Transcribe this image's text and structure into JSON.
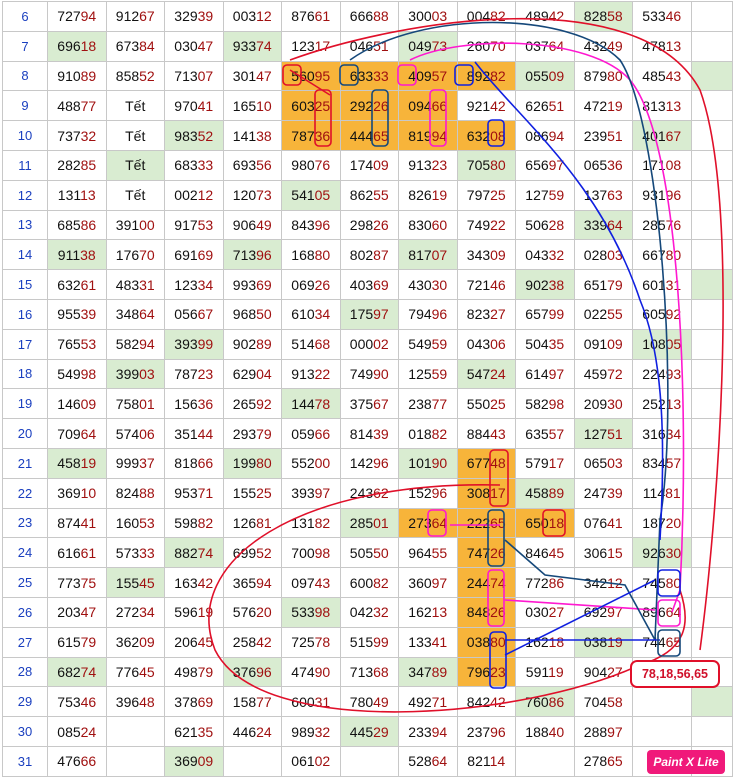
{
  "colors": {
    "green_highlight": "#d9ecd1",
    "orange_highlight": "#f7b43a",
    "red": "#e0102a",
    "pink": "#ff18d0",
    "blue": "#1020e0",
    "navy": "#15487a"
  },
  "rows": [
    {
      "day": "6",
      "cells": [
        {
          "v": "72794"
        },
        {
          "v": "91267"
        },
        {
          "v": "32939"
        },
        {
          "v": "00312"
        },
        {
          "v": "87661"
        },
        {
          "v": "66688"
        },
        {
          "v": "30003"
        },
        {
          "v": "00482"
        },
        {
          "v": "48942"
        },
        {
          "v": "82858",
          "hl": "g"
        },
        {
          "v": "53346"
        },
        {
          "v": "",
          "hl": ""
        }
      ]
    },
    {
      "day": "7",
      "cells": [
        {
          "v": "69618",
          "hl": "g"
        },
        {
          "v": "67384"
        },
        {
          "v": "03047"
        },
        {
          "v": "93374",
          "hl": "g"
        },
        {
          "v": "12317"
        },
        {
          "v": "04651"
        },
        {
          "v": "04973",
          "hl": "g"
        },
        {
          "v": "26070"
        },
        {
          "v": "03764"
        },
        {
          "v": "43249"
        },
        {
          "v": "47813"
        },
        {
          "v": ""
        }
      ]
    },
    {
      "day": "8",
      "cells": [
        {
          "v": "91089"
        },
        {
          "v": "85852"
        },
        {
          "v": "71307"
        },
        {
          "v": "30147"
        },
        {
          "v": "56095",
          "hl": "o"
        },
        {
          "v": "63333",
          "hl": "o"
        },
        {
          "v": "40957",
          "hl": "o"
        },
        {
          "v": "89282",
          "hl": "o"
        },
        {
          "v": "05509",
          "hl": "g"
        },
        {
          "v": "87980"
        },
        {
          "v": "48543"
        },
        {
          "v": "",
          "hl": "g"
        }
      ]
    },
    {
      "day": "9",
      "cells": [
        {
          "v": "48877"
        },
        {
          "v": "Tết",
          "tet": true
        },
        {
          "v": "97041"
        },
        {
          "v": "16510"
        },
        {
          "v": "60325",
          "hl": "o"
        },
        {
          "v": "29226",
          "hl": "o"
        },
        {
          "v": "09466",
          "hl": "o"
        },
        {
          "v": "92142"
        },
        {
          "v": "62651"
        },
        {
          "v": "47219"
        },
        {
          "v": "81313"
        },
        {
          "v": ""
        }
      ]
    },
    {
      "day": "10",
      "cells": [
        {
          "v": "73732"
        },
        {
          "v": "Tết",
          "tet": true
        },
        {
          "v": "98352",
          "hl": "g"
        },
        {
          "v": "14138"
        },
        {
          "v": "78736",
          "hl": "o"
        },
        {
          "v": "44465",
          "hl": "o"
        },
        {
          "v": "81994",
          "hl": "o"
        },
        {
          "v": "63208",
          "hl": "o"
        },
        {
          "v": "08694"
        },
        {
          "v": "23951"
        },
        {
          "v": "40167",
          "hl": "g"
        },
        {
          "v": ""
        }
      ]
    },
    {
      "day": "11",
      "cells": [
        {
          "v": "28285"
        },
        {
          "v": "Tết",
          "tet": true,
          "hl": "g"
        },
        {
          "v": "68333"
        },
        {
          "v": "69356"
        },
        {
          "v": "98076"
        },
        {
          "v": "17409"
        },
        {
          "v": "91323"
        },
        {
          "v": "70580",
          "hl": "g"
        },
        {
          "v": "65697"
        },
        {
          "v": "06536"
        },
        {
          "v": "17108"
        },
        {
          "v": ""
        }
      ]
    },
    {
      "day": "12",
      "cells": [
        {
          "v": "13113"
        },
        {
          "v": "Tết",
          "tet": true
        },
        {
          "v": "00212"
        },
        {
          "v": "12073"
        },
        {
          "v": "54105",
          "hl": "g"
        },
        {
          "v": "86255"
        },
        {
          "v": "82619"
        },
        {
          "v": "79725"
        },
        {
          "v": "12759"
        },
        {
          "v": "13763"
        },
        {
          "v": "93196"
        },
        {
          "v": ""
        }
      ]
    },
    {
      "day": "13",
      "cells": [
        {
          "v": "68586"
        },
        {
          "v": "39100"
        },
        {
          "v": "91753"
        },
        {
          "v": "90649"
        },
        {
          "v": "84396"
        },
        {
          "v": "29826"
        },
        {
          "v": "83060"
        },
        {
          "v": "74922"
        },
        {
          "v": "50628"
        },
        {
          "v": "33964",
          "hl": "g"
        },
        {
          "v": "28576"
        },
        {
          "v": ""
        }
      ]
    },
    {
      "day": "14",
      "cells": [
        {
          "v": "91138",
          "hl": "g"
        },
        {
          "v": "17670"
        },
        {
          "v": "69169"
        },
        {
          "v": "71396",
          "hl": "g"
        },
        {
          "v": "16880"
        },
        {
          "v": "80287"
        },
        {
          "v": "81707",
          "hl": "g"
        },
        {
          "v": "34309"
        },
        {
          "v": "04332"
        },
        {
          "v": "02803"
        },
        {
          "v": "66780"
        },
        {
          "v": ""
        }
      ]
    },
    {
      "day": "15",
      "cells": [
        {
          "v": "63261"
        },
        {
          "v": "48331"
        },
        {
          "v": "12334"
        },
        {
          "v": "99369"
        },
        {
          "v": "06926"
        },
        {
          "v": "40369"
        },
        {
          "v": "43030"
        },
        {
          "v": "72146"
        },
        {
          "v": "90238",
          "hl": "g"
        },
        {
          "v": "65179"
        },
        {
          "v": "60131"
        },
        {
          "v": "",
          "hl": "g"
        }
      ]
    },
    {
      "day": "16",
      "cells": [
        {
          "v": "95539"
        },
        {
          "v": "34864"
        },
        {
          "v": "05667"
        },
        {
          "v": "96850"
        },
        {
          "v": "61034"
        },
        {
          "v": "17597",
          "hl": "g"
        },
        {
          "v": "79496"
        },
        {
          "v": "82327"
        },
        {
          "v": "65799"
        },
        {
          "v": "02255"
        },
        {
          "v": "60592"
        },
        {
          "v": ""
        }
      ]
    },
    {
      "day": "17",
      "cells": [
        {
          "v": "76553"
        },
        {
          "v": "58294"
        },
        {
          "v": "39399",
          "hl": "g"
        },
        {
          "v": "90289"
        },
        {
          "v": "51468"
        },
        {
          "v": "00002"
        },
        {
          "v": "54959"
        },
        {
          "v": "04306"
        },
        {
          "v": "50435"
        },
        {
          "v": "09109"
        },
        {
          "v": "10805",
          "hl": "g"
        },
        {
          "v": ""
        }
      ]
    },
    {
      "day": "18",
      "cells": [
        {
          "v": "54998"
        },
        {
          "v": "39903",
          "hl": "g"
        },
        {
          "v": "78723"
        },
        {
          "v": "62904"
        },
        {
          "v": "91322"
        },
        {
          "v": "74990"
        },
        {
          "v": "12559"
        },
        {
          "v": "54724",
          "hl": "g"
        },
        {
          "v": "61497"
        },
        {
          "v": "45972"
        },
        {
          "v": "22493"
        },
        {
          "v": ""
        }
      ]
    },
    {
      "day": "19",
      "cells": [
        {
          "v": "14609"
        },
        {
          "v": "75801"
        },
        {
          "v": "15636"
        },
        {
          "v": "26592"
        },
        {
          "v": "14478",
          "hl": "g"
        },
        {
          "v": "37567"
        },
        {
          "v": "23877"
        },
        {
          "v": "55025"
        },
        {
          "v": "58298"
        },
        {
          "v": "20930"
        },
        {
          "v": "25213"
        },
        {
          "v": ""
        }
      ]
    },
    {
      "day": "20",
      "cells": [
        {
          "v": "70964"
        },
        {
          "v": "57406"
        },
        {
          "v": "35144"
        },
        {
          "v": "29379"
        },
        {
          "v": "05966"
        },
        {
          "v": "81439"
        },
        {
          "v": "01882"
        },
        {
          "v": "88443"
        },
        {
          "v": "63557"
        },
        {
          "v": "12751",
          "hl": "g"
        },
        {
          "v": "31634"
        },
        {
          "v": ""
        }
      ]
    },
    {
      "day": "21",
      "cells": [
        {
          "v": "45819",
          "hl": "g"
        },
        {
          "v": "99937"
        },
        {
          "v": "81866"
        },
        {
          "v": "19980",
          "hl": "g"
        },
        {
          "v": "55200"
        },
        {
          "v": "14296"
        },
        {
          "v": "10190",
          "hl": "g"
        },
        {
          "v": "67748",
          "hl": "o"
        },
        {
          "v": "57917"
        },
        {
          "v": "06503"
        },
        {
          "v": "83457"
        },
        {
          "v": ""
        }
      ]
    },
    {
      "day": "22",
      "cells": [
        {
          "v": "36910"
        },
        {
          "v": "82488"
        },
        {
          "v": "95371"
        },
        {
          "v": "15525"
        },
        {
          "v": "39397"
        },
        {
          "v": "24362"
        },
        {
          "v": "15296"
        },
        {
          "v": "30817",
          "hl": "o"
        },
        {
          "v": "45889",
          "hl": "g"
        },
        {
          "v": "24739"
        },
        {
          "v": "11481"
        },
        {
          "v": ""
        }
      ]
    },
    {
      "day": "23",
      "cells": [
        {
          "v": "87441"
        },
        {
          "v": "16053"
        },
        {
          "v": "59882"
        },
        {
          "v": "12681"
        },
        {
          "v": "13182"
        },
        {
          "v": "28501",
          "hl": "g"
        },
        {
          "v": "27364",
          "hl": "o"
        },
        {
          "v": "22265",
          "hl": "o"
        },
        {
          "v": "65018",
          "hl": "o"
        },
        {
          "v": "07641"
        },
        {
          "v": "18720"
        },
        {
          "v": ""
        }
      ]
    },
    {
      "day": "24",
      "cells": [
        {
          "v": "61661"
        },
        {
          "v": "57333"
        },
        {
          "v": "88274",
          "hl": "g"
        },
        {
          "v": "69952"
        },
        {
          "v": "70098"
        },
        {
          "v": "50550"
        },
        {
          "v": "96455"
        },
        {
          "v": "74726",
          "hl": "o"
        },
        {
          "v": "84645"
        },
        {
          "v": "30615"
        },
        {
          "v": "92630",
          "hl": "g"
        },
        {
          "v": ""
        }
      ]
    },
    {
      "day": "25",
      "cells": [
        {
          "v": "77375"
        },
        {
          "v": "15545",
          "hl": "g"
        },
        {
          "v": "16342"
        },
        {
          "v": "36594"
        },
        {
          "v": "09743"
        },
        {
          "v": "60082"
        },
        {
          "v": "36097"
        },
        {
          "v": "24474",
          "hl": "o"
        },
        {
          "v": "77286"
        },
        {
          "v": "34212"
        },
        {
          "v": "74580"
        },
        {
          "v": ""
        }
      ]
    },
    {
      "day": "26",
      "cells": [
        {
          "v": "20347"
        },
        {
          "v": "27234"
        },
        {
          "v": "59619"
        },
        {
          "v": "57620"
        },
        {
          "v": "53398",
          "hl": "g"
        },
        {
          "v": "04232"
        },
        {
          "v": "16213"
        },
        {
          "v": "84826",
          "hl": "o"
        },
        {
          "v": "03027"
        },
        {
          "v": "69297"
        },
        {
          "v": "89664"
        },
        {
          "v": ""
        }
      ]
    },
    {
      "day": "27",
      "cells": [
        {
          "v": "61579"
        },
        {
          "v": "36209"
        },
        {
          "v": "20645"
        },
        {
          "v": "25842"
        },
        {
          "v": "72578"
        },
        {
          "v": "51599"
        },
        {
          "v": "13341"
        },
        {
          "v": "03880",
          "hl": "o"
        },
        {
          "v": "16218"
        },
        {
          "v": "03819",
          "hl": "g"
        },
        {
          "v": "74465"
        },
        {
          "v": ""
        }
      ]
    },
    {
      "day": "28",
      "cells": [
        {
          "v": "68274",
          "hl": "g"
        },
        {
          "v": "77645"
        },
        {
          "v": "49879"
        },
        {
          "v": "37696",
          "hl": "g"
        },
        {
          "v": "47490"
        },
        {
          "v": "71368"
        },
        {
          "v": "34789",
          "hl": "g"
        },
        {
          "v": "79623",
          "hl": "o"
        },
        {
          "v": "59119"
        },
        {
          "v": "90427"
        },
        {
          "v": ""
        },
        {
          "v": ""
        }
      ]
    },
    {
      "day": "29",
      "cells": [
        {
          "v": "75346"
        },
        {
          "v": "39648"
        },
        {
          "v": "37869"
        },
        {
          "v": "15877"
        },
        {
          "v": "60031"
        },
        {
          "v": "78049"
        },
        {
          "v": "49271"
        },
        {
          "v": "84242"
        },
        {
          "v": "76086",
          "hl": "g"
        },
        {
          "v": "70458"
        },
        {
          "v": ""
        },
        {
          "v": "",
          "hl": "g"
        }
      ]
    },
    {
      "day": "30",
      "cells": [
        {
          "v": "08524"
        },
        {
          "v": ""
        },
        {
          "v": "62135"
        },
        {
          "v": "44624"
        },
        {
          "v": "98932"
        },
        {
          "v": "44529",
          "hl": "g"
        },
        {
          "v": "23394"
        },
        {
          "v": "23796"
        },
        {
          "v": "18840"
        },
        {
          "v": "28897"
        },
        {
          "v": ""
        },
        {
          "v": ""
        }
      ]
    },
    {
      "day": "31",
      "cells": [
        {
          "v": "47666"
        },
        {
          "v": ""
        },
        {
          "v": "36909",
          "hl": "g"
        },
        {
          "v": ""
        },
        {
          "v": "06102"
        },
        {
          "v": ""
        },
        {
          "v": "52864"
        },
        {
          "v": "82114"
        },
        {
          "v": ""
        },
        {
          "v": "27865"
        },
        {
          "v": ""
        },
        {
          "v": ""
        }
      ]
    }
  ],
  "annotation": {
    "note": "78,18,56,65"
  },
  "badge": {
    "label": "Paint X Lite"
  }
}
